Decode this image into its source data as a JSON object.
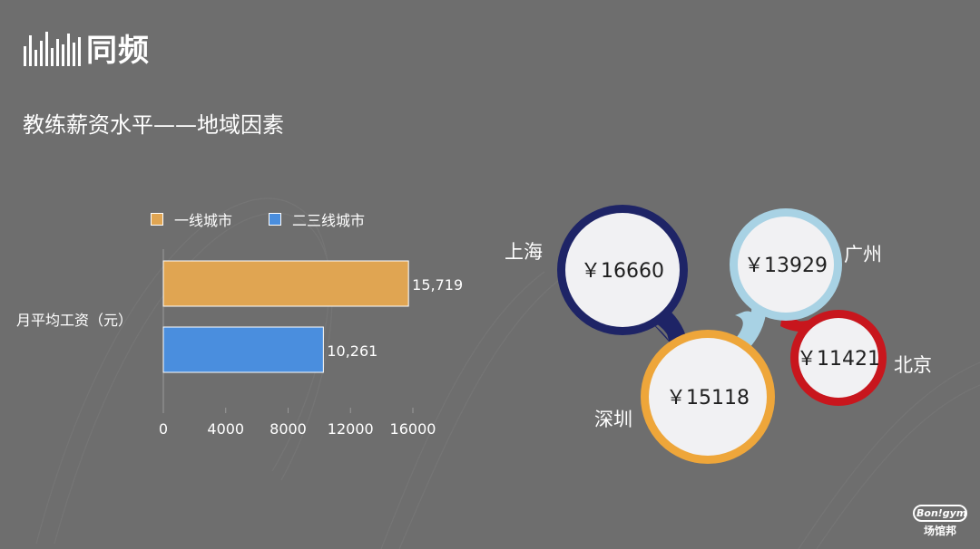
{
  "header": {
    "logo_text": "同频",
    "title": "教练薪资水平——地域因素"
  },
  "colors": {
    "background": "#6e6e6e",
    "tier1": "#e0a552",
    "tier2": "#4a8ede"
  },
  "chart_data": {
    "type": "bar",
    "orientation": "horizontal",
    "categories": [
      "月平均工资（元）"
    ],
    "ylabel": "月平均工资（元）",
    "series": [
      {
        "name": "一线城市",
        "values": [
          15719
        ],
        "label": "15,719",
        "color": "#e0a552"
      },
      {
        "name": "二三线城市",
        "values": [
          10261
        ],
        "label": "10,261",
        "color": "#4a8ede"
      }
    ],
    "xlim": [
      0,
      16000
    ],
    "xticks": [
      0,
      4000,
      8000,
      12000,
      16000
    ],
    "xtick_labels": [
      "0",
      "4000",
      "8000",
      "12000",
      "16000"
    ],
    "legend": "top",
    "grid": false
  },
  "cities": [
    {
      "id": "shanghai",
      "name": "上海",
      "value": "￥16660",
      "color": "#1e2466"
    },
    {
      "id": "guangzhou",
      "name": "广州",
      "value": "￥13929",
      "color": "#a8d2e4"
    },
    {
      "id": "beijing",
      "name": "北京",
      "value": "￥11421",
      "color": "#c8161d"
    },
    {
      "id": "shenzhen",
      "name": "深圳",
      "value": "￥15118",
      "color": "#eea63a"
    }
  ],
  "brand": {
    "top": "Bon!gym",
    "bottom": "场馆邦"
  }
}
